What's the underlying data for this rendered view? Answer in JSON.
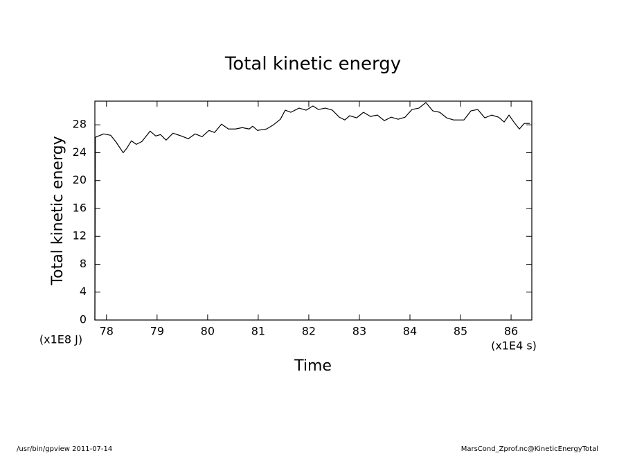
{
  "chart_data": {
    "type": "line",
    "title": "Total kinetic energy",
    "y_label": "Total kinetic energy",
    "x_label": "Time",
    "y_unit": "(x1E8 J)",
    "x_unit": "(x1E4 s)",
    "footer_left": "/usr/bin/gpview  2011-07-14",
    "footer_right": "MarsCond_Zprof.nc@KineticEnergyTotal",
    "xlim": [
      77.77,
      86.41
    ],
    "ylim": [
      0,
      31.4
    ],
    "xticks": [
      78,
      79,
      80,
      81,
      82,
      83,
      84,
      85,
      86
    ],
    "yticks": [
      0,
      4,
      8,
      12,
      16,
      20,
      24,
      28
    ],
    "x": [
      77.77,
      77.78,
      77.808,
      77.945,
      78.082,
      78.192,
      78.329,
      78.397,
      78.493,
      78.589,
      78.699,
      78.863,
      78.973,
      79.068,
      79.178,
      79.315,
      79.479,
      79.616,
      79.753,
      79.89,
      80.027,
      80.137,
      80.274,
      80.411,
      80.548,
      80.685,
      80.822,
      80.89,
      80.986,
      81.164,
      81.301,
      81.438,
      81.534,
      81.644,
      81.808,
      81.945,
      82.082,
      82.192,
      82.329,
      82.466,
      82.603,
      82.712,
      82.808,
      82.945,
      83.082,
      83.219,
      83.356,
      83.493,
      83.63,
      83.767,
      83.904,
      84.041,
      84.178,
      84.315,
      84.452,
      84.589,
      84.726,
      84.863,
      85.068,
      85.205,
      85.342,
      85.479,
      85.616,
      85.753,
      85.863,
      85.959,
      86.055,
      86.164,
      86.26,
      86.37
    ],
    "series": [
      {
        "name": "Total kinetic energy",
        "color": "#000000",
        "values": [
          0,
          26.2,
          26.3,
          26.7,
          26.5,
          25.5,
          24.0,
          24.6,
          25.7,
          25.2,
          25.6,
          27.1,
          26.4,
          26.6,
          25.8,
          26.8,
          26.4,
          26.0,
          26.7,
          26.3,
          27.2,
          26.9,
          28.1,
          27.4,
          27.4,
          27.6,
          27.4,
          27.8,
          27.2,
          27.4,
          28.0,
          28.8,
          30.1,
          29.8,
          30.4,
          30.1,
          30.7,
          30.2,
          30.4,
          30.1,
          29.1,
          28.7,
          29.3,
          29.0,
          29.8,
          29.2,
          29.4,
          28.6,
          29.1,
          28.8,
          29.1,
          30.2,
          30.4,
          31.2,
          30.0,
          29.8,
          29.0,
          28.7,
          28.7,
          30.0,
          30.2,
          29.0,
          29.4,
          29.1,
          28.4,
          29.4,
          28.4,
          27.4,
          28.2,
          28.2
        ]
      }
    ]
  }
}
